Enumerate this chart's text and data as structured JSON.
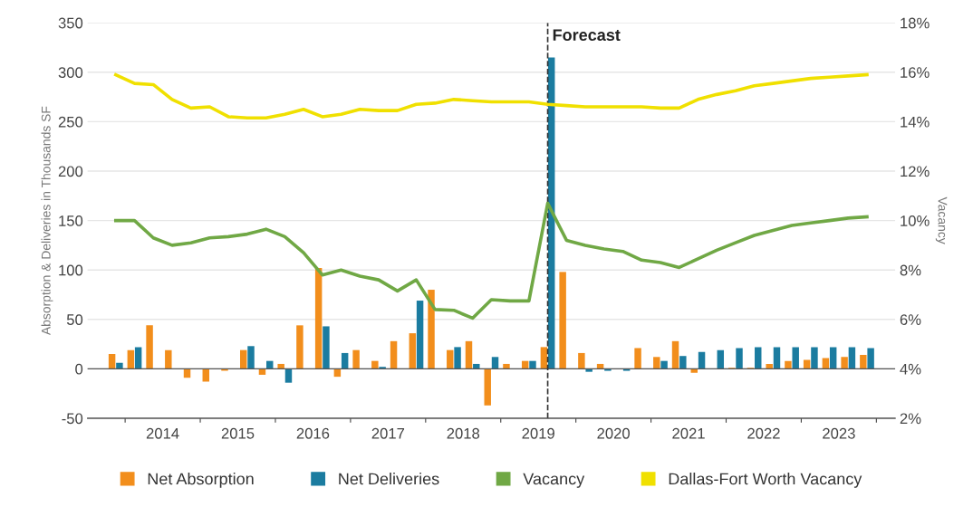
{
  "chart_data": {
    "type": "bar",
    "xlabel": null,
    "ylabel": "Absorption & Deliveries in Thousands SF",
    "y2label": "Vacancy",
    "x": [
      2013.875,
      2014.125,
      2014.375,
      2014.625,
      2014.875,
      2015.125,
      2015.375,
      2015.625,
      2015.875,
      2016.125,
      2016.375,
      2016.625,
      2016.875,
      2017.125,
      2017.375,
      2017.625,
      2017.875,
      2018.125,
      2018.375,
      2018.625,
      2018.875,
      2019.125,
      2019.375,
      2019.625,
      2019.875,
      2020.125,
      2020.375,
      2020.625,
      2020.875,
      2021.125,
      2021.375,
      2021.625,
      2021.875,
      2022.125,
      2022.375,
      2022.625,
      2022.875,
      2023.125,
      2023.375,
      2023.625,
      2023.875
    ],
    "series": [
      {
        "name": "Net Absorption",
        "color": "#f28e1c",
        "values": [
          15,
          19,
          44,
          19,
          -9,
          -13,
          -2,
          19,
          -6,
          5,
          44,
          102,
          -8,
          19,
          8,
          28,
          36,
          80,
          19,
          28,
          -37,
          5,
          8,
          22,
          98,
          16,
          5,
          0,
          21,
          12,
          28,
          -4,
          0,
          1,
          1,
          5,
          8,
          9,
          11,
          12,
          14
        ]
      },
      {
        "name": "Net Deliveries",
        "color": "#1b7ca0",
        "values": [
          6,
          22,
          0,
          0,
          0,
          0,
          0,
          23,
          8,
          -14,
          0,
          43,
          16,
          0,
          2,
          0,
          69,
          0,
          22,
          5,
          12,
          0,
          8,
          315,
          0,
          -3,
          -2,
          -2,
          0,
          8,
          13,
          17,
          19,
          21,
          22,
          22,
          22,
          22,
          22,
          22,
          21
        ]
      },
      {
        "name": "Vacancy",
        "type": "line",
        "axis": "y2",
        "color": "#70a845",
        "values": [
          10.0,
          10.0,
          9.3,
          9.0,
          9.1,
          9.3,
          9.35,
          9.45,
          9.65,
          9.35,
          8.7,
          7.8,
          8.0,
          7.75,
          7.6,
          7.15,
          7.6,
          6.4,
          6.37,
          6.05,
          6.8,
          6.75,
          6.75,
          10.7,
          9.2,
          9.0,
          8.85,
          8.75,
          8.4,
          8.3,
          8.1,
          8.45,
          8.8,
          9.1,
          9.4,
          9.6,
          9.8,
          9.9,
          10.0,
          10.1,
          10.15
        ]
      },
      {
        "name": "Dallas-Fort Worth Vacancy",
        "type": "line",
        "axis": "y2",
        "color": "#f0e000",
        "values": [
          15.9,
          15.55,
          15.5,
          14.9,
          14.55,
          14.6,
          14.2,
          14.15,
          14.15,
          14.3,
          14.5,
          14.2,
          14.3,
          14.5,
          14.45,
          14.45,
          14.7,
          14.75,
          14.9,
          14.85,
          14.8,
          14.8,
          14.8,
          14.7,
          14.65,
          14.6,
          14.6,
          14.6,
          14.6,
          14.55,
          14.55,
          14.9,
          15.1,
          15.25,
          15.45,
          15.55,
          15.65,
          15.75,
          15.8,
          15.85,
          15.9
        ]
      }
    ],
    "xlim": [
      2013.5,
      2024.25
    ],
    "xticks": [
      {
        "value": 2014,
        "label": null
      },
      {
        "value": 2014.5,
        "label": "2014"
      },
      {
        "value": 2015,
        "label": null
      },
      {
        "value": 2015.5,
        "label": "2015"
      },
      {
        "value": 2016,
        "label": null
      },
      {
        "value": 2016.5,
        "label": "2016"
      },
      {
        "value": 2017,
        "label": null
      },
      {
        "value": 2017.5,
        "label": "2017"
      },
      {
        "value": 2018,
        "label": null
      },
      {
        "value": 2018.5,
        "label": "2018"
      },
      {
        "value": 2019,
        "label": null
      },
      {
        "value": 2019.5,
        "label": "2019"
      },
      {
        "value": 2020,
        "label": null
      },
      {
        "value": 2020.5,
        "label": "2020"
      },
      {
        "value": 2021,
        "label": null
      },
      {
        "value": 2021.5,
        "label": "2021"
      },
      {
        "value": 2022,
        "label": null
      },
      {
        "value": 2022.5,
        "label": "2022"
      },
      {
        "value": 2023,
        "label": null
      },
      {
        "value": 2023.5,
        "label": "2023"
      },
      {
        "value": 2024,
        "label": null
      }
    ],
    "ylim": [
      -50,
      350
    ],
    "yticks": [
      -50,
      0,
      50,
      100,
      150,
      200,
      250,
      300,
      350
    ],
    "y2lim": [
      2,
      18
    ],
    "y2ticks": [
      {
        "value": 2,
        "label": "2%"
      },
      {
        "value": 4,
        "label": "4%"
      },
      {
        "value": 6,
        "label": "6%"
      },
      {
        "value": 8,
        "label": "8%"
      },
      {
        "value": 10,
        "label": "10%"
      },
      {
        "value": 12,
        "label": "12%"
      },
      {
        "value": 14,
        "label": "14%"
      },
      {
        "value": 16,
        "label": "16%"
      },
      {
        "value": 18,
        "label": "18%"
      }
    ],
    "ref_lines": [
      {
        "axis": "x",
        "value": 2019.625,
        "label": "Forecast",
        "color": "#333333",
        "line_style": "dashed"
      }
    ],
    "grid": "y",
    "legend": "bottom",
    "marker": "none",
    "line_style": "solid"
  }
}
